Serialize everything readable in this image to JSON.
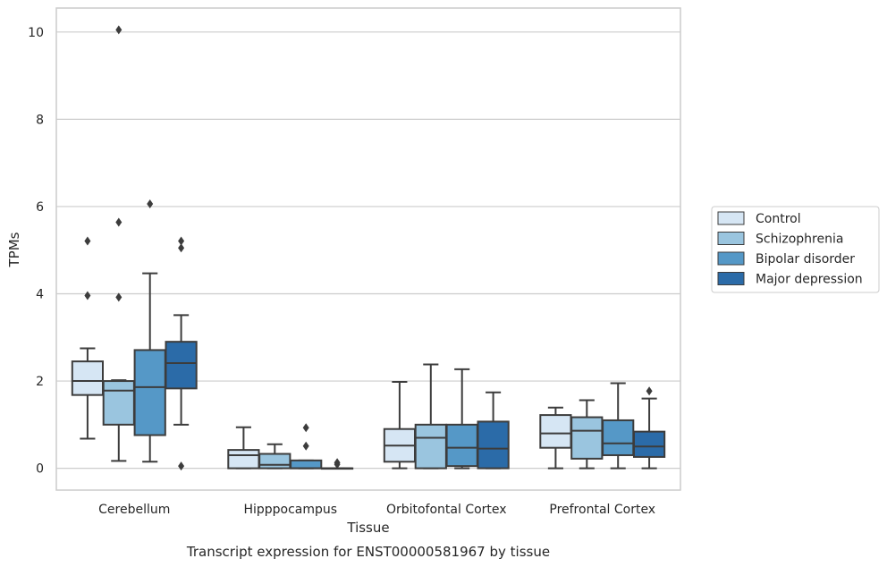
{
  "chart_data": {
    "type": "box",
    "caption": "Transcript expression for ENST00000581967 by tissue",
    "xlabel": "Tissue",
    "ylabel": "TPMs",
    "ylim": [
      -0.5,
      10.55
    ],
    "yticks": [
      0,
      2,
      4,
      6,
      8,
      10
    ],
    "grid": "horizontal",
    "legend_position": "right",
    "categories": [
      "Cerebellum",
      "Hipppocampus",
      "Orbitofontal Cortex",
      "Prefrontal Cortex"
    ],
    "series": [
      {
        "name": "Control",
        "color": "#d6e6f4",
        "boxes": [
          {
            "whisker_low": 0.68,
            "q1": 1.68,
            "median": 2.0,
            "q3": 2.45,
            "whisker_high": 2.75,
            "outliers": [
              3.96,
              5.21
            ]
          },
          {
            "whisker_low": 0.0,
            "q1": 0.0,
            "median": 0.3,
            "q3": 0.42,
            "whisker_high": 0.94,
            "outliers": []
          },
          {
            "whisker_low": 0.0,
            "q1": 0.15,
            "median": 0.52,
            "q3": 0.9,
            "whisker_high": 1.98,
            "outliers": []
          },
          {
            "whisker_low": 0.0,
            "q1": 0.47,
            "median": 0.8,
            "q3": 1.22,
            "whisker_high": 1.39,
            "outliers": []
          }
        ]
      },
      {
        "name": "Schizophrenia",
        "color": "#9ac5df",
        "boxes": [
          {
            "whisker_low": 0.17,
            "q1": 1.0,
            "median": 1.78,
            "q3": 2.0,
            "whisker_high": 2.02,
            "outliers": [
              3.92,
              5.64,
              10.05
            ]
          },
          {
            "whisker_low": 0.0,
            "q1": 0.0,
            "median": 0.08,
            "q3": 0.33,
            "whisker_high": 0.55,
            "outliers": []
          },
          {
            "whisker_low": 0.0,
            "q1": 0.0,
            "median": 0.7,
            "q3": 1.0,
            "whisker_high": 2.38,
            "outliers": []
          },
          {
            "whisker_low": 0.0,
            "q1": 0.22,
            "median": 0.86,
            "q3": 1.17,
            "whisker_high": 1.56,
            "outliers": []
          }
        ]
      },
      {
        "name": "Bipolar disorder",
        "color": "#5598c7",
        "boxes": [
          {
            "whisker_low": 0.15,
            "q1": 0.76,
            "median": 1.86,
            "q3": 2.71,
            "whisker_high": 4.47,
            "outliers": [
              6.06
            ]
          },
          {
            "whisker_low": 0.0,
            "q1": 0.0,
            "median": 0.0,
            "q3": 0.18,
            "whisker_high": 0.18,
            "outliers": [
              0.51,
              0.93
            ]
          },
          {
            "whisker_low": 0.0,
            "q1": 0.05,
            "median": 0.47,
            "q3": 1.0,
            "whisker_high": 2.27,
            "outliers": []
          },
          {
            "whisker_low": 0.0,
            "q1": 0.3,
            "median": 0.57,
            "q3": 1.1,
            "whisker_high": 1.95,
            "outliers": []
          }
        ]
      },
      {
        "name": "Major depression",
        "color": "#2b6ba8",
        "boxes": [
          {
            "whisker_low": 1.0,
            "q1": 1.83,
            "median": 2.41,
            "q3": 2.9,
            "whisker_high": 3.51,
            "outliers": [
              0.05,
              5.05,
              5.21
            ]
          },
          {
            "whisker_low": 0.0,
            "q1": 0.0,
            "median": 0.0,
            "q3": 0.0,
            "whisker_high": 0.0,
            "outliers": [
              0.09,
              0.13
            ]
          },
          {
            "whisker_low": 0.0,
            "q1": 0.0,
            "median": 0.45,
            "q3": 1.07,
            "whisker_high": 1.74,
            "outliers": []
          },
          {
            "whisker_low": 0.0,
            "q1": 0.26,
            "median": 0.5,
            "q3": 0.84,
            "whisker_high": 1.6,
            "outliers": [
              1.77
            ]
          }
        ]
      }
    ]
  }
}
